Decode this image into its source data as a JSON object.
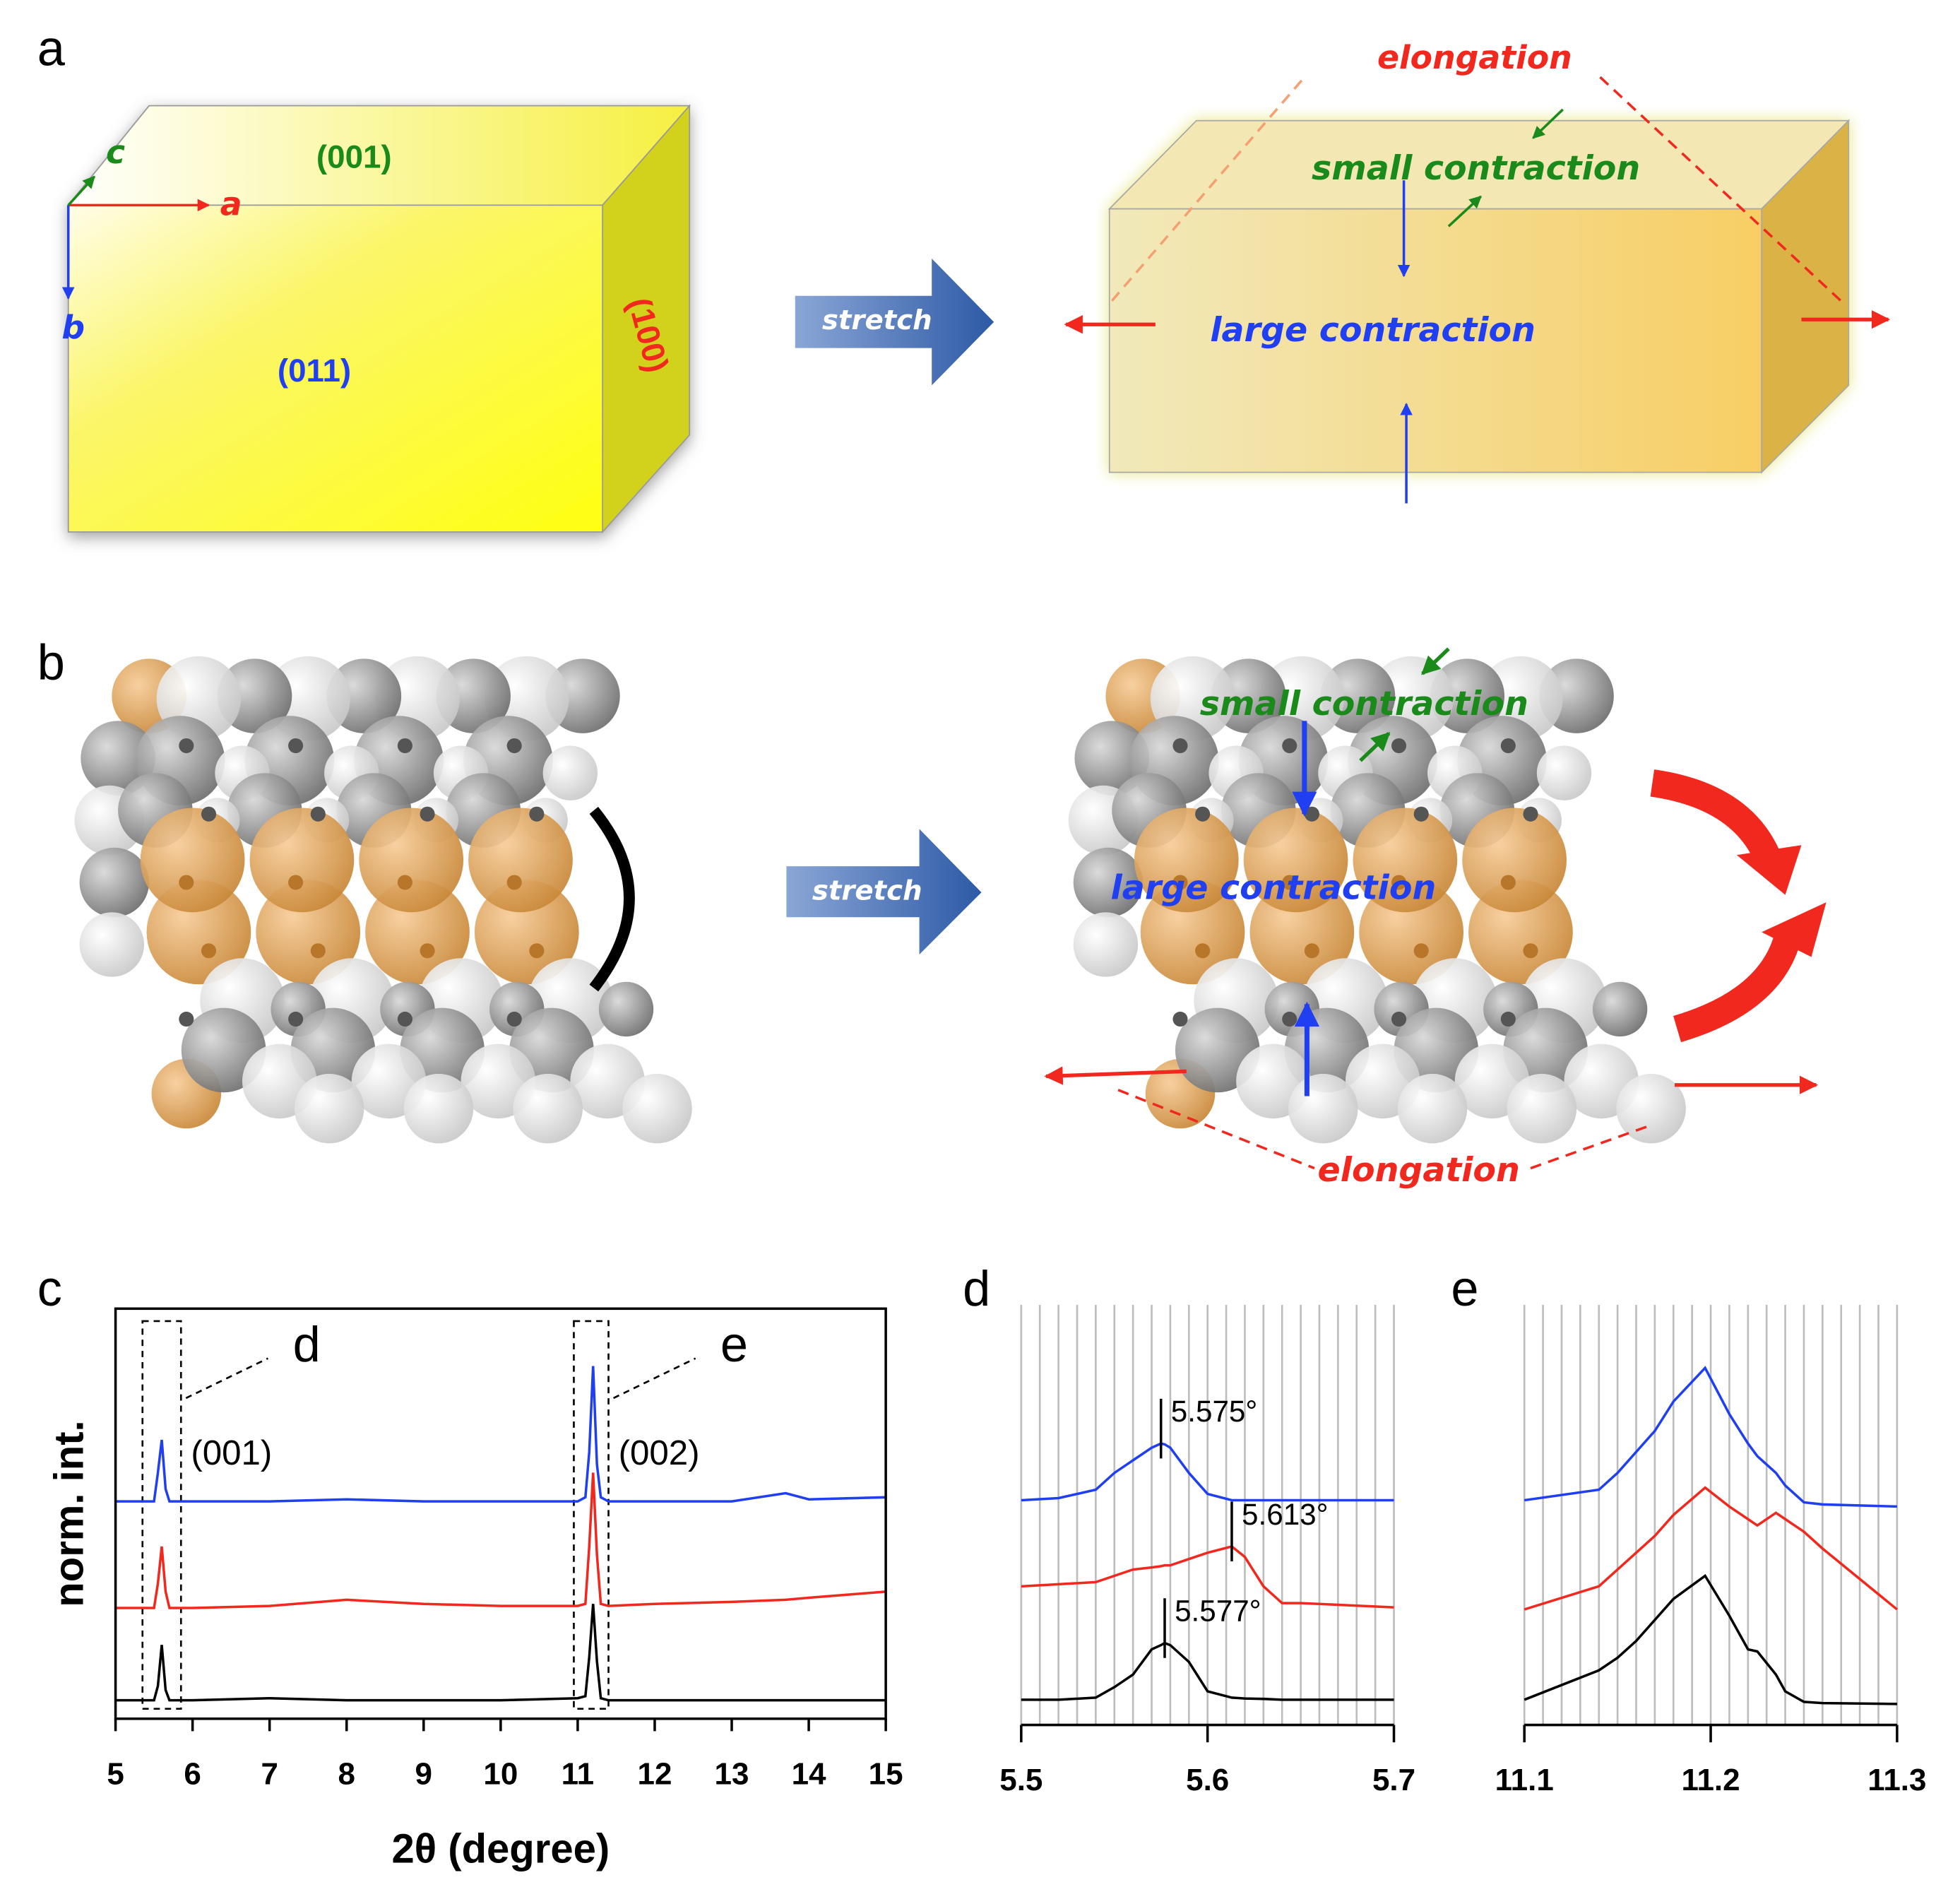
{
  "panels": {
    "a": {
      "label": "a",
      "axes": {
        "a": "a",
        "b": "b",
        "c": "c"
      },
      "faces": {
        "top": "(001)",
        "front": "(011)",
        "side": "(100)"
      },
      "arrow": "stretch",
      "elongation": "elongation",
      "small_contraction": "small contraction",
      "large_contraction": "large contraction"
    },
    "b": {
      "label": "b",
      "arrow": "stretch",
      "elongation": "elongation",
      "small_contraction": "small contraction",
      "large_contraction": "large contraction"
    }
  },
  "chart_data": [
    {
      "type": "line",
      "panel": "c",
      "xlabel": "2θ (degree)",
      "ylabel": "norm. int.",
      "x": [
        5,
        5.5,
        5.55,
        5.6,
        5.65,
        5.7,
        6,
        7,
        8,
        9,
        10,
        11,
        11.1,
        11.15,
        11.2,
        11.25,
        11.3,
        11.4,
        12,
        13,
        13.7,
        14,
        15
      ],
      "series": [
        {
          "color": "#1f3ff0",
          "values": [
            0.53,
            0.53,
            0.6,
            0.68,
            0.56,
            0.53,
            0.53,
            0.53,
            0.535,
            0.53,
            0.53,
            0.53,
            0.54,
            0.65,
            0.86,
            0.62,
            0.54,
            0.53,
            0.53,
            0.53,
            0.55,
            0.535,
            0.54
          ]
        },
        {
          "color": "#f0281e",
          "values": [
            0.27,
            0.27,
            0.33,
            0.42,
            0.31,
            0.27,
            0.27,
            0.275,
            0.29,
            0.28,
            0.275,
            0.275,
            0.28,
            0.42,
            0.6,
            0.4,
            0.28,
            0.275,
            0.28,
            0.285,
            0.29,
            0.295,
            0.31
          ]
        },
        {
          "color": "#000000",
          "values": [
            0.045,
            0.045,
            0.08,
            0.18,
            0.07,
            0.045,
            0.045,
            0.05,
            0.045,
            0.045,
            0.045,
            0.05,
            0.055,
            0.15,
            0.28,
            0.14,
            0.05,
            0.045,
            0.045,
            0.045,
            0.045,
            0.045,
            0.045
          ]
        }
      ],
      "regions": [
        {
          "label": "d",
          "peak": "(001)",
          "xlim": [
            5.35,
            5.85
          ]
        },
        {
          "label": "e",
          "peak": "(002)",
          "xlim": [
            10.95,
            11.4
          ]
        }
      ],
      "xlim": [
        5,
        15
      ],
      "xticks": [
        5,
        6,
        7,
        8,
        9,
        10,
        11,
        12,
        13,
        14,
        15
      ],
      "ylim": [
        0,
        1
      ]
    },
    {
      "type": "line",
      "panel": "d",
      "x": [
        5.5,
        5.52,
        5.54,
        5.55,
        5.56,
        5.57,
        5.575,
        5.577,
        5.58,
        5.59,
        5.6,
        5.613,
        5.62,
        5.63,
        5.64,
        5.65,
        5.7
      ],
      "series": [
        {
          "color": "#1f3ff0",
          "values": [
            0.535,
            0.54,
            0.56,
            0.6,
            0.63,
            0.66,
            0.67,
            0.668,
            0.66,
            0.6,
            0.55,
            0.535,
            0.535,
            0.535,
            0.535,
            0.535,
            0.535
          ],
          "peak_label": {
            "x": 5.575,
            "label": "5.575°"
          }
        },
        {
          "color": "#f0281e",
          "values": [
            0.33,
            0.335,
            0.34,
            0.355,
            0.37,
            0.375,
            0.378,
            0.38,
            0.38,
            0.395,
            0.41,
            0.425,
            0.4,
            0.33,
            0.29,
            0.29,
            0.28
          ],
          "peak_label": {
            "x": 5.613,
            "label": "5.613°"
          }
        },
        {
          "color": "#000000",
          "values": [
            0.06,
            0.06,
            0.065,
            0.09,
            0.12,
            0.18,
            0.19,
            0.195,
            0.19,
            0.15,
            0.08,
            0.065,
            0.063,
            0.062,
            0.06,
            0.06,
            0.06
          ],
          "peak_label": {
            "x": 5.577,
            "label": "5.577°"
          }
        }
      ],
      "xlim": [
        5.5,
        5.7
      ],
      "xticks": [
        5.5,
        5.6,
        5.7
      ],
      "xminor": [
        5.51,
        5.52,
        5.53,
        5.54,
        5.55,
        5.56,
        5.57,
        5.58,
        5.59,
        5.61,
        5.62,
        5.63,
        5.64,
        5.65,
        5.66,
        5.67,
        5.68,
        5.69
      ],
      "ylim": [
        0,
        1
      ]
    },
    {
      "type": "line",
      "panel": "e",
      "x": [
        11.1,
        11.14,
        11.15,
        11.16,
        11.17,
        11.18,
        11.197,
        11.21,
        11.22,
        11.225,
        11.235,
        11.24,
        11.25,
        11.26,
        11.3
      ],
      "series": [
        {
          "color": "#1f3ff0",
          "values": [
            0.535,
            0.56,
            0.6,
            0.65,
            0.7,
            0.77,
            0.85,
            0.74,
            0.67,
            0.64,
            0.6,
            0.57,
            0.53,
            0.525,
            0.52
          ]
        },
        {
          "color": "#f0281e",
          "values": [
            0.275,
            0.33,
            0.37,
            0.41,
            0.45,
            0.5,
            0.565,
            0.52,
            0.49,
            0.475,
            0.505,
            0.49,
            0.46,
            0.42,
            0.275
          ]
        },
        {
          "color": "#000000",
          "values": [
            0.06,
            0.13,
            0.16,
            0.2,
            0.25,
            0.3,
            0.355,
            0.26,
            0.18,
            0.175,
            0.12,
            0.08,
            0.055,
            0.052,
            0.05
          ]
        }
      ],
      "xlim": [
        11.1,
        11.3
      ],
      "xticks": [
        11.1,
        11.2,
        11.3
      ],
      "xminor": [
        11.11,
        11.12,
        11.13,
        11.14,
        11.15,
        11.16,
        11.17,
        11.18,
        11.19,
        11.21,
        11.22,
        11.23,
        11.24,
        11.25,
        11.26,
        11.27,
        11.28,
        11.29
      ],
      "ylim": [
        0,
        1
      ]
    }
  ]
}
